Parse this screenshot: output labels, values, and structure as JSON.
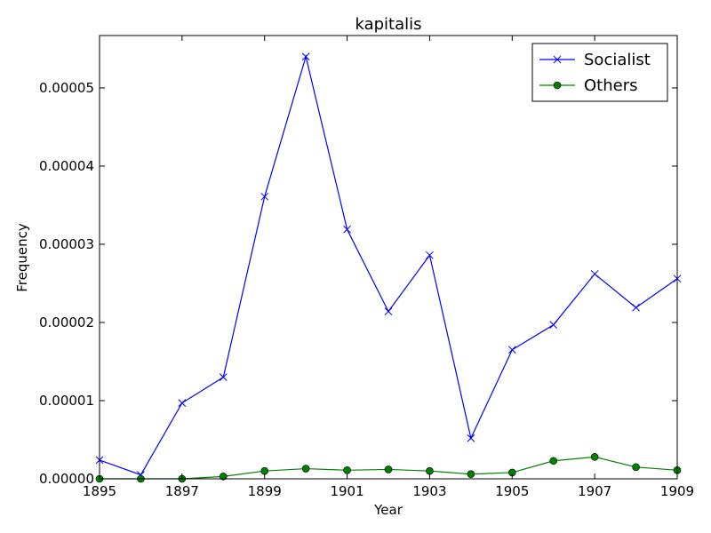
{
  "chart_data": {
    "type": "line",
    "title": "kapitalis",
    "xlabel": "Year",
    "ylabel": "Frequency",
    "x": [
      1895,
      1896,
      1897,
      1898,
      1899,
      1900,
      1901,
      1902,
      1903,
      1904,
      1905,
      1906,
      1907,
      1908,
      1909
    ],
    "xlim": [
      1895,
      1909
    ],
    "ylim": [
      0,
      5.67e-05
    ],
    "x_ticks": [
      "1895",
      "1897",
      "1899",
      "1901",
      "1903",
      "1905",
      "1907",
      "1909"
    ],
    "y_ticks": [
      "0.00000",
      "0.00001",
      "0.00002",
      "0.00003",
      "0.00004",
      "0.00005"
    ],
    "grid": false,
    "legend_position": "top-right",
    "series": [
      {
        "name": "Socialist",
        "color": "#0000ff",
        "marker": "x",
        "values": [
          2.4e-06,
          5e-07,
          9.7e-06,
          1.3e-05,
          3.61e-05,
          5.4e-05,
          3.19e-05,
          2.14e-05,
          2.86e-05,
          5.2e-06,
          1.65e-05,
          1.97e-05,
          2.62e-05,
          2.19e-05,
          2.56e-05
        ]
      },
      {
        "name": "Others",
        "color": "#008000",
        "marker": "o",
        "values": [
          0.0,
          0.0,
          0.0,
          3e-07,
          1e-06,
          1.3e-06,
          1.1e-06,
          1.2e-06,
          1e-06,
          6e-07,
          8e-07,
          2.3e-06,
          2.8e-06,
          1.5e-06,
          1.1e-06
        ]
      }
    ]
  }
}
